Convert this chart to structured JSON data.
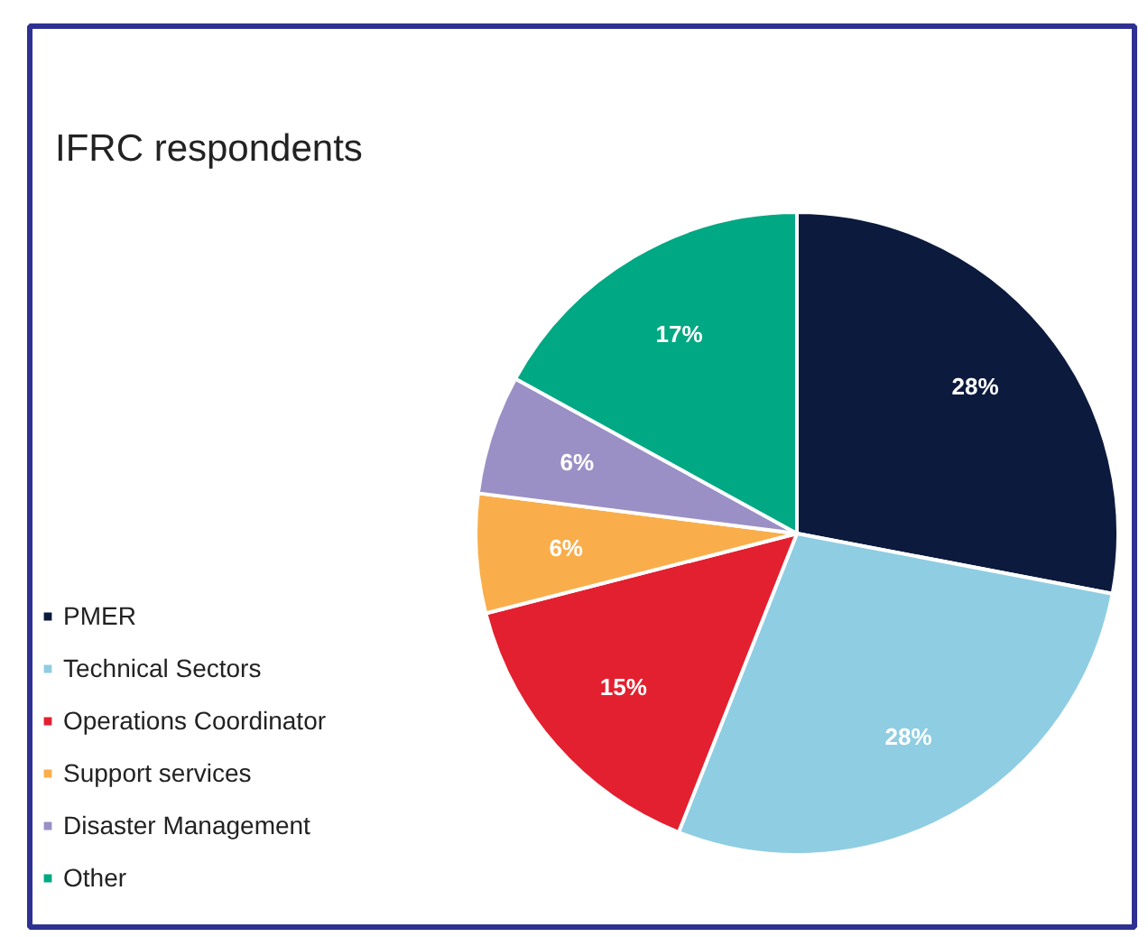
{
  "chart_data": {
    "type": "pie",
    "title": "IFRC respondents",
    "categories": [
      "PMER",
      "Technical Sectors",
      "Operations Coordinator",
      "Support services",
      "Disaster Management",
      "Other"
    ],
    "values": [
      28,
      28,
      15,
      6,
      6,
      17
    ],
    "value_labels": [
      "28%",
      "28%",
      "15%",
      "6%",
      "6%",
      "17%"
    ],
    "colors": [
      "#0b1a3d",
      "#8fcde2",
      "#e3202f",
      "#f9ae4b",
      "#9a90c6",
      "#00a883"
    ],
    "legend": "left"
  }
}
